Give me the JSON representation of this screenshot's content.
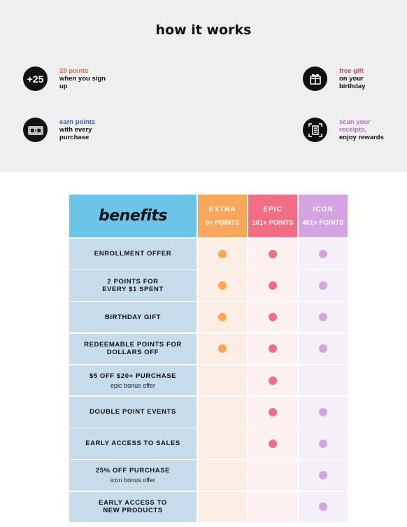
{
  "colors": {
    "extra": "#fba75b",
    "epic": "#f26d85",
    "icon": "#d3a3e2",
    "extra_bg": "#fdeee5",
    "epic_bg": "#fdf1f2",
    "icon_bg": "#f5f0f8",
    "benefits_bg": "#6cc5e9",
    "label_bg": "#c7dcea",
    "points_orange": "#f26a3c",
    "gift_pink": "#e83e70",
    "earn_blue": "#4a5db0",
    "scan_purple": "#b56cd6"
  },
  "how_it_works": {
    "title": "how it works",
    "steps": [
      {
        "icon": "+25",
        "icon_name": "plus-25-icon",
        "highlight": "25 points",
        "body": [
          "when you sign",
          "up"
        ],
        "color": "#f26a3c"
      },
      {
        "icon": "",
        "icon_name": "gift-box-icon",
        "highlight": "free gift",
        "body": [
          "on your",
          "birthday"
        ],
        "color": "#e83e70"
      },
      {
        "icon": "",
        "icon_name": "cash-icon",
        "highlight": "earn points",
        "body": [
          "with every",
          "purchase"
        ],
        "color": "#4a5db0"
      },
      {
        "icon": "",
        "icon_name": "receipt-scan-icon",
        "highlight": [
          "scan your",
          "receipts,"
        ],
        "body": [
          "enjoy rewards"
        ],
        "color": "#b56cd6"
      }
    ]
  },
  "benefits": {
    "header": "benefits",
    "tiers": [
      {
        "name": "EXTRA",
        "points": "0+ POINTS"
      },
      {
        "name": "EPIC",
        "points": "101+ POINTS"
      },
      {
        "name": "ICON",
        "points": "401+ POINTS"
      }
    ],
    "rows": [
      {
        "label": [
          "ENROLLMENT OFFER"
        ],
        "sub": "",
        "extra": true,
        "epic": true,
        "icon": true
      },
      {
        "label": [
          "2 POINTS FOR",
          "EVERY $1 SPENT"
        ],
        "sub": "",
        "extra": true,
        "epic": true,
        "icon": true
      },
      {
        "label": [
          "BIRTHDAY GIFT"
        ],
        "sub": "",
        "extra": true,
        "epic": true,
        "icon": true
      },
      {
        "label": [
          "REDEEMABLE POINTS FOR",
          "DOLLARS OFF"
        ],
        "sub": "",
        "extra": true,
        "epic": true,
        "icon": true
      },
      {
        "label": [
          "$5 OFF $20+ PURCHASE"
        ],
        "sub": "epic bonus offer",
        "extra": false,
        "epic": true,
        "icon": false
      },
      {
        "label": [
          "DOUBLE POINT EVENTS"
        ],
        "sub": "",
        "extra": false,
        "epic": true,
        "icon": true
      },
      {
        "label": [
          "EARLY ACCESS TO SALES"
        ],
        "sub": "",
        "extra": false,
        "epic": true,
        "icon": true
      },
      {
        "label": [
          "25% OFF PURCHASE"
        ],
        "sub": "icon bonus offer",
        "extra": false,
        "epic": false,
        "icon": true
      },
      {
        "label": [
          "EARLY ACCESS TO",
          "NEW PRODUCTS"
        ],
        "sub": "",
        "extra": false,
        "epic": false,
        "icon": true
      }
    ]
  }
}
